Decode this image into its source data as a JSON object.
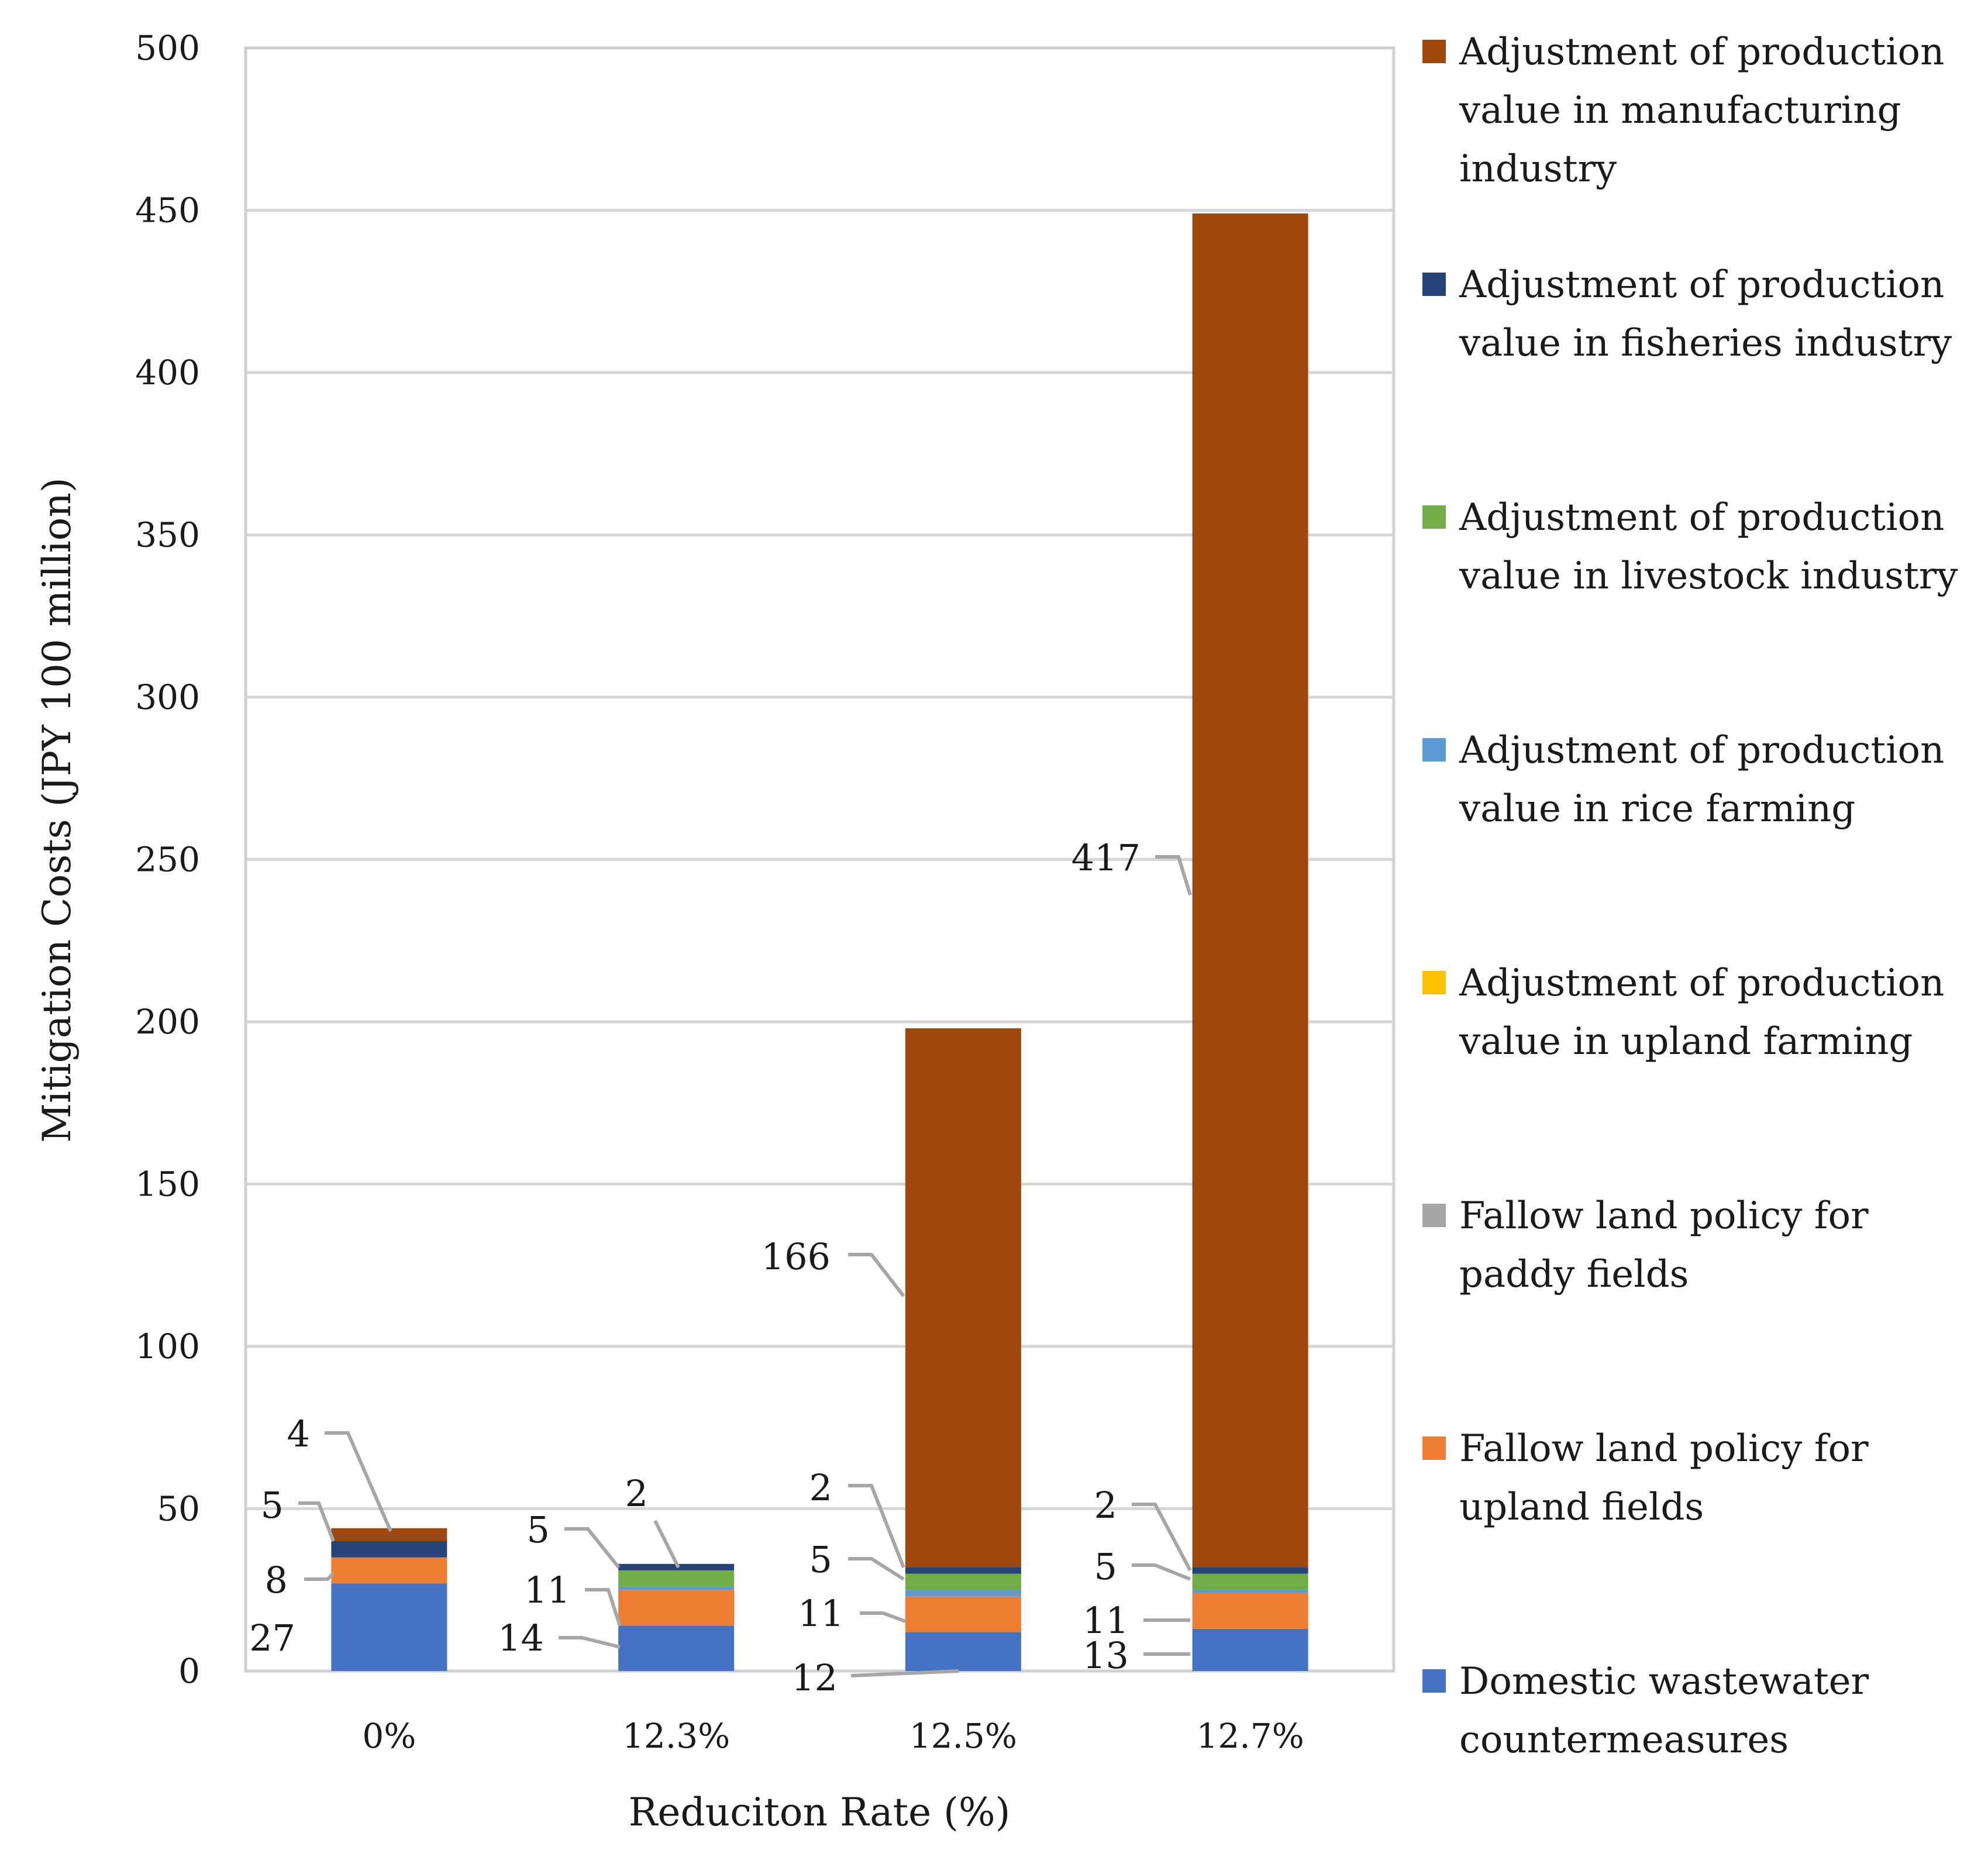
{
  "chart_data": {
    "type": "bar",
    "stacked": true,
    "title": "",
    "xlabel": "Reduciton Rate (%)",
    "ylabel": "Mitigation Costs (JPY 100 million)",
    "ylim": [
      0,
      500
    ],
    "yticks": [
      0,
      50,
      100,
      150,
      200,
      250,
      300,
      350,
      400,
      450,
      500
    ],
    "ytick_labels": [
      "0",
      "50",
      "100",
      "150",
      "200",
      "250",
      "300",
      "350",
      "400",
      "450",
      "500"
    ],
    "grid": true,
    "legend_position": "right",
    "categories": [
      "0%",
      "12.3%",
      "12.5%",
      "12.7%"
    ],
    "series": [
      {
        "name": "Domestic wastewater countermeasures",
        "color": "#4472C4",
        "values": [
          27,
          14,
          12,
          13
        ]
      },
      {
        "name": "Fallow land policy for upland fields",
        "color": "#ED7D31",
        "values": [
          8,
          11,
          11,
          11
        ]
      },
      {
        "name": "Fallow land policy for paddy fields",
        "color": "#A5A5A5",
        "values": [
          0,
          0,
          0,
          0
        ]
      },
      {
        "name": "Adjustment of production value in upland farming",
        "color": "#FFC000",
        "values": [
          0,
          0,
          0,
          0
        ]
      },
      {
        "name": "Adjustment of production value in rice farming",
        "color": "#5B9BD5",
        "values": [
          0,
          1,
          2,
          1
        ]
      },
      {
        "name": "Adjustment of production value in livestock industry",
        "color": "#70AD47",
        "values": [
          0,
          5,
          5,
          5
        ]
      },
      {
        "name": "Adjustment of production value in fisheries industry",
        "color": "#264478",
        "values": [
          5,
          2,
          2,
          2
        ]
      },
      {
        "name": "Adjustment of production value in manufacturing industry",
        "color": "#9E480E",
        "values": [
          4,
          0,
          166,
          417
        ]
      }
    ],
    "data_labels": [
      {
        "category": "0%",
        "series": "Domestic wastewater countermeasures",
        "text": "27"
      },
      {
        "category": "0%",
        "series": "Fallow land policy for upland fields",
        "text": "8"
      },
      {
        "category": "0%",
        "series": "Adjustment of production value in fisheries industry",
        "text": "5"
      },
      {
        "category": "0%",
        "series": "Adjustment of production value in manufacturing industry",
        "text": "4"
      },
      {
        "category": "12.3%",
        "series": "Domestic wastewater countermeasures",
        "text": "14"
      },
      {
        "category": "12.3%",
        "series": "Fallow land policy for upland fields",
        "text": "11"
      },
      {
        "category": "12.3%",
        "series": "Adjustment of production value in livestock industry",
        "text": "5"
      },
      {
        "category": "12.3%",
        "series": "Adjustment of production value in fisheries industry",
        "text": "2"
      },
      {
        "category": "12.5%",
        "series": "Domestic wastewater countermeasures",
        "text": "12"
      },
      {
        "category": "12.5%",
        "series": "Fallow land policy for upland fields",
        "text": "11"
      },
      {
        "category": "12.5%",
        "series": "Adjustment of production value in livestock industry",
        "text": "5"
      },
      {
        "category": "12.5%",
        "series": "Adjustment of production value in fisheries industry",
        "text": "2"
      },
      {
        "category": "12.5%",
        "series": "Adjustment of production value in manufacturing industry",
        "text": "166"
      },
      {
        "category": "12.7%",
        "series": "Domestic wastewater countermeasures",
        "text": "13"
      },
      {
        "category": "12.7%",
        "series": "Fallow land policy for upland fields",
        "text": "11"
      },
      {
        "category": "12.7%",
        "series": "Adjustment of production value in livestock industry",
        "text": "5"
      },
      {
        "category": "12.7%",
        "series": "Adjustment of production value in fisheries industry",
        "text": "2"
      },
      {
        "category": "12.7%",
        "series": "Adjustment of production value in manufacturing industry",
        "text": "417"
      }
    ],
    "legend": [
      {
        "series": "Adjustment of production value in manufacturing industry",
        "lines": [
          "Adjustment of production",
          "value in manufacturing",
          "industry"
        ]
      },
      {
        "series": "Adjustment of production value in fisheries industry",
        "lines": [
          "Adjustment of production",
          "value in fisheries industry"
        ]
      },
      {
        "series": "Adjustment of production value in livestock industry",
        "lines": [
          "Adjustment of production",
          "value in livestock industry"
        ]
      },
      {
        "series": "Adjustment of production value in rice farming",
        "lines": [
          "Adjustment of production",
          "value in rice farming"
        ]
      },
      {
        "series": "Adjustment of production value in upland farming",
        "lines": [
          "Adjustment of production",
          "value in upland farming"
        ]
      },
      {
        "series": "Fallow land policy for paddy fields",
        "lines": [
          "Fallow land policy for",
          "paddy fields"
        ]
      },
      {
        "series": "Fallow land policy for upland fields",
        "lines": [
          "Fallow land policy for",
          "upland fields"
        ]
      },
      {
        "series": "Domestic wastewater countermeasures",
        "lines": [
          "Domestic wastewater",
          "countermeasures"
        ]
      }
    ]
  }
}
